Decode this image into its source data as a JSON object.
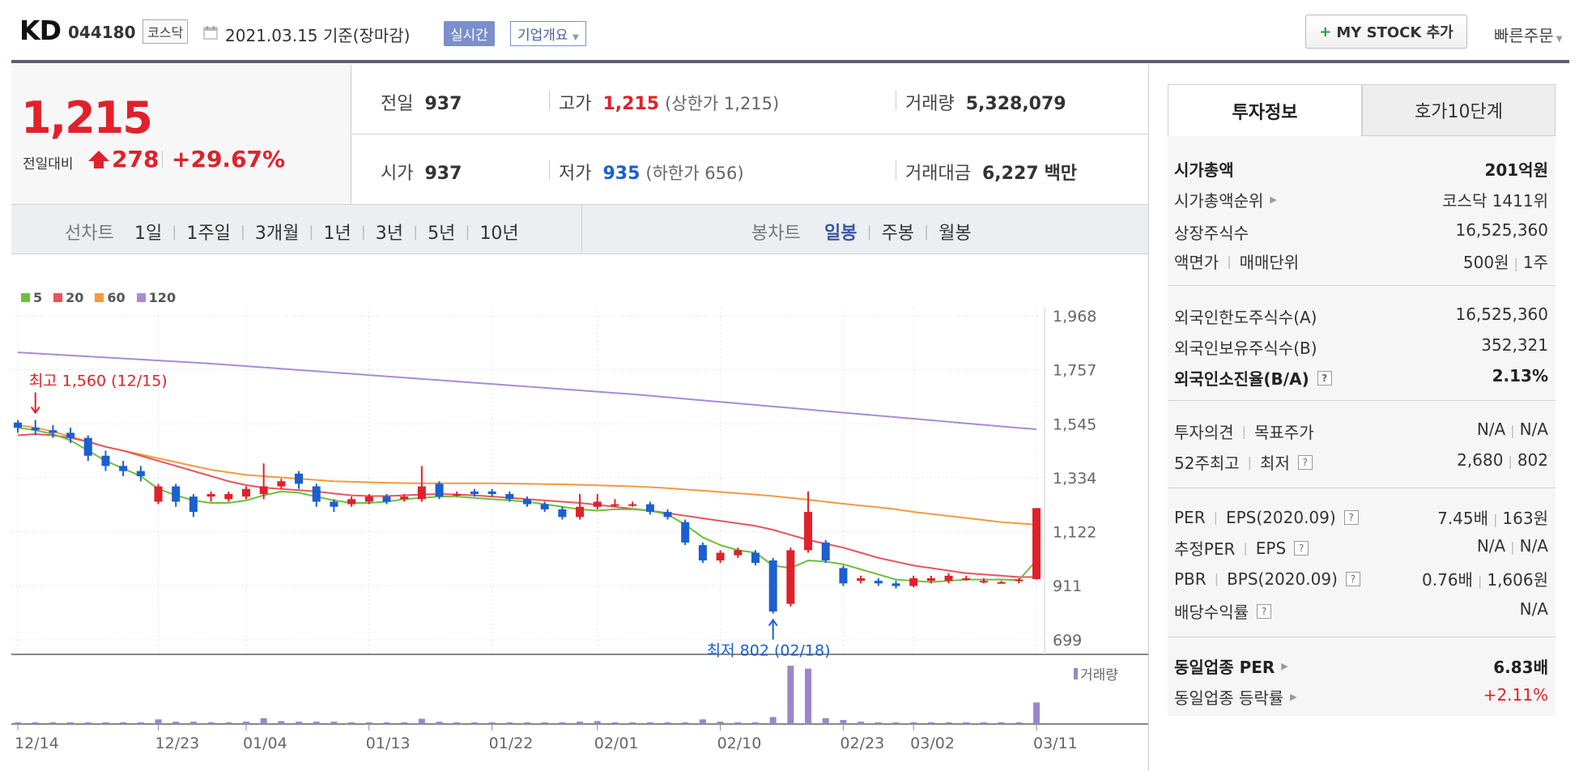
{
  "header": {
    "ticker_name": "KD",
    "ticker_code": "044180",
    "market_badge": "코스닥",
    "calendar_icon": "calendar-icon",
    "date_text": "2021.03.15  기준(장마감)",
    "realtime_btn": "실시간",
    "company_btn": "기업개요",
    "mystock_btn": "MY STOCK 추가",
    "quick_order": "빠른주문"
  },
  "price": {
    "current": "1,215",
    "prev_label": "전일대비",
    "diff": "278",
    "pct": "+29.67%",
    "up_icon": "up-arrow-icon"
  },
  "stats": {
    "prev_lbl": "전일",
    "prev_val": "937",
    "high_lbl": "고가",
    "high_val": "1,215",
    "upper_limit": "(상한가 1,215)",
    "volume_lbl": "거래량",
    "volume_val": "5,328,079",
    "open_lbl": "시가",
    "open_val": "937",
    "low_lbl": "저가",
    "low_val": "935",
    "lower_limit": "(하한가 656)",
    "amount_lbl": "거래대금",
    "amount_val": "6,227",
    "amount_unit": "백만"
  },
  "periods": {
    "line_label": "선차트",
    "line_items": [
      "1일",
      "1주일",
      "3개월",
      "1년",
      "3년",
      "5년",
      "10년"
    ],
    "candle_label": "봉차트",
    "candle_items": [
      "일봉",
      "주봉",
      "월봉"
    ],
    "active_candle": "일봉"
  },
  "tabs": {
    "invest": "투자정보",
    "hoga": "호가10단계"
  },
  "info": {
    "mcap_lbl": "시가총액",
    "mcap_val": "201억원",
    "mcap_rank_lbl": "시가총액순위",
    "mcap_rank_val": "코스닥 1411위",
    "shares_lbl": "상장주식수",
    "shares_val": "16,525,360",
    "face_lbl": "액면가",
    "unit_lbl": "매매단위",
    "face_val": "500원",
    "unit_val": "1주",
    "foreign_limit_lbl": "외국인한도주식수(A)",
    "foreign_limit_val": "16,525,360",
    "foreign_hold_lbl": "외국인보유주식수(B)",
    "foreign_hold_val": "352,321",
    "foreign_ratio_lbl": "외국인소진율(B/A)",
    "foreign_ratio_val": "2.13%",
    "opinion_lbl": "투자의견",
    "target_lbl": "목표주가",
    "opinion_val": "N/A",
    "target_val": "N/A",
    "w52_lbl": "52주최고",
    "w52_low_lbl": "최저",
    "w52_high_val": "2,680",
    "w52_low_val": "802",
    "per_lbl": "PER",
    "eps_lbl": "EPS(2020.09)",
    "per_val": "7.45배",
    "eps_val": "163원",
    "eper_lbl": "추정PER",
    "eeps_lbl": "EPS",
    "eper_val": "N/A",
    "eeps_val": "N/A",
    "pbr_lbl": "PBR",
    "bps_lbl": "BPS(2020.09)",
    "pbr_val": "0.76배",
    "bps_val": "1,606원",
    "div_lbl": "배당수익률",
    "div_val": "N/A",
    "ind_per_lbl": "동일업종 PER",
    "ind_per_val": "6.83배",
    "ind_rate_lbl": "동일업종 등락률",
    "ind_rate_val": "+2.11%"
  },
  "colors": {
    "up": "#e0212b",
    "down": "#1a60d0",
    "ma5": "#6cbf3c",
    "ma20": "#e8545c",
    "ma60": "#f39a3e",
    "ma120": "#a78bd8",
    "volume": "#9b86c8"
  },
  "chart_data": {
    "type": "candlestick",
    "legend": [
      "5",
      "20",
      "60",
      "120"
    ],
    "y_ticks": [
      1968,
      1757,
      1545,
      1334,
      1122,
      911,
      699
    ],
    "ylim": [
      699,
      1968
    ],
    "x_ticks": [
      "12/14",
      "12/23",
      "01/04",
      "01/13",
      "01/22",
      "02/01",
      "02/10",
      "02/23",
      "03/02",
      "03/11"
    ],
    "x_tick_index": [
      0,
      8,
      13,
      20,
      27,
      33,
      40,
      47,
      51,
      58
    ],
    "high_annotation": "최고 1,560 (12/15)",
    "high_index": 1,
    "high_value": 1560,
    "low_annotation": "최저 802 (02/18)",
    "low_index": 43,
    "low_value": 802,
    "volume_label": "거래량",
    "candles": [
      [
        1550,
        1530,
        1560,
        1510
      ],
      [
        1530,
        1520,
        1560,
        1500
      ],
      [
        1520,
        1510,
        1540,
        1490
      ],
      [
        1510,
        1490,
        1530,
        1470
      ],
      [
        1490,
        1420,
        1500,
        1400
      ],
      [
        1420,
        1380,
        1440,
        1360
      ],
      [
        1380,
        1360,
        1400,
        1340
      ],
      [
        1360,
        1340,
        1380,
        1320
      ],
      [
        1240,
        1300,
        1310,
        1230
      ],
      [
        1300,
        1240,
        1310,
        1220
      ],
      [
        1260,
        1200,
        1270,
        1180
      ],
      [
        1260,
        1270,
        1280,
        1240
      ],
      [
        1250,
        1270,
        1280,
        1240
      ],
      [
        1260,
        1290,
        1300,
        1250
      ],
      [
        1270,
        1300,
        1390,
        1250
      ],
      [
        1300,
        1320,
        1330,
        1290
      ],
      [
        1350,
        1310,
        1360,
        1290
      ],
      [
        1300,
        1240,
        1310,
        1220
      ],
      [
        1240,
        1220,
        1250,
        1200
      ],
      [
        1230,
        1250,
        1260,
        1220
      ],
      [
        1240,
        1260,
        1270,
        1230
      ],
      [
        1260,
        1240,
        1270,
        1230
      ],
      [
        1250,
        1260,
        1270,
        1240
      ],
      [
        1250,
        1300,
        1380,
        1240
      ],
      [
        1310,
        1260,
        1320,
        1250
      ],
      [
        1270,
        1270,
        1280,
        1260
      ],
      [
        1280,
        1270,
        1290,
        1260
      ],
      [
        1280,
        1270,
        1290,
        1260
      ],
      [
        1270,
        1250,
        1280,
        1240
      ],
      [
        1250,
        1230,
        1260,
        1220
      ],
      [
        1230,
        1210,
        1240,
        1200
      ],
      [
        1210,
        1180,
        1220,
        1170
      ],
      [
        1180,
        1220,
        1270,
        1170
      ],
      [
        1220,
        1240,
        1270,
        1210
      ],
      [
        1230,
        1230,
        1250,
        1220
      ],
      [
        1230,
        1230,
        1240,
        1220
      ],
      [
        1230,
        1200,
        1240,
        1190
      ],
      [
        1200,
        1180,
        1210,
        1170
      ],
      [
        1160,
        1080,
        1170,
        1070
      ],
      [
        1070,
        1010,
        1080,
        1000
      ],
      [
        1010,
        1040,
        1050,
        1000
      ],
      [
        1030,
        1050,
        1060,
        1020
      ],
      [
        1040,
        1000,
        1050,
        990
      ],
      [
        1010,
        810,
        1020,
        802
      ],
      [
        840,
        1050,
        1060,
        830
      ],
      [
        1050,
        1200,
        1280,
        1040
      ],
      [
        1080,
        1010,
        1090,
        1000
      ],
      [
        980,
        920,
        990,
        910
      ],
      [
        930,
        940,
        950,
        920
      ],
      [
        930,
        920,
        940,
        910
      ],
      [
        920,
        910,
        930,
        900
      ],
      [
        910,
        940,
        950,
        905
      ],
      [
        930,
        940,
        950,
        920
      ],
      [
        930,
        950,
        960,
        920
      ],
      [
        940,
        940,
        950,
        930
      ],
      [
        930,
        930,
        940,
        920
      ],
      [
        925,
        925,
        930,
        920
      ],
      [
        930,
        935,
        940,
        920
      ],
      [
        937,
        1215,
        1215,
        935
      ]
    ],
    "volumes": [
      3,
      3,
      3,
      3,
      3,
      3,
      3,
      3,
      8,
      4,
      4,
      3,
      3,
      4,
      10,
      5,
      4,
      4,
      4,
      3,
      3,
      3,
      3,
      9,
      4,
      3,
      3,
      3,
      3,
      3,
      3,
      3,
      4,
      5,
      3,
      3,
      3,
      3,
      3,
      8,
      4,
      3,
      3,
      12,
      100,
      95,
      10,
      7,
      4,
      3,
      3,
      3,
      3,
      3,
      3,
      3,
      3,
      3,
      37
    ],
    "ma5": [
      1530,
      1520,
      1505,
      1480,
      1440,
      1400,
      1370,
      1340,
      1290,
      1265,
      1245,
      1235,
      1235,
      1245,
      1265,
      1280,
      1275,
      1260,
      1245,
      1235,
      1235,
      1240,
      1250,
      1255,
      1260,
      1260,
      1255,
      1250,
      1245,
      1240,
      1230,
      1220,
      1210,
      1205,
      1210,
      1210,
      1205,
      1190,
      1150,
      1100,
      1070,
      1050,
      1040,
      990,
      980,
      1010,
      1005,
      995,
      975,
      955,
      935,
      930,
      925,
      930,
      935,
      935,
      935,
      933,
      1010
    ],
    "ma20": [
      1500,
      1505,
      1500,
      1490,
      1475,
      1455,
      1440,
      1420,
      1400,
      1380,
      1360,
      1340,
      1320,
      1305,
      1295,
      1290,
      1285,
      1280,
      1272,
      1265,
      1262,
      1262,
      1265,
      1268,
      1270,
      1268,
      1265,
      1260,
      1255,
      1250,
      1245,
      1240,
      1235,
      1228,
      1220,
      1212,
      1205,
      1195,
      1185,
      1175,
      1165,
      1155,
      1145,
      1130,
      1110,
      1090,
      1075,
      1060,
      1040,
      1020,
      1005,
      990,
      980,
      970,
      960,
      955,
      950,
      945,
      945
    ],
    "ma60": [
      1540,
      1530,
      1515,
      1495,
      1475,
      1455,
      1440,
      1425,
      1410,
      1395,
      1380,
      1365,
      1355,
      1345,
      1340,
      1335,
      1330,
      1325,
      1320,
      1318,
      1316,
      1314,
      1313,
      1312,
      1312,
      1312,
      1312,
      1312,
      1311,
      1310,
      1309,
      1308,
      1306,
      1304,
      1302,
      1300,
      1297,
      1293,
      1288,
      1283,
      1278,
      1273,
      1268,
      1262,
      1255,
      1248,
      1240,
      1232,
      1225,
      1218,
      1210,
      1200,
      1192,
      1184,
      1176,
      1168,
      1160,
      1155,
      1150
    ],
    "ma120": [
      1825,
      1821,
      1817,
      1813,
      1809,
      1805,
      1801,
      1797,
      1793,
      1789,
      1785,
      1781,
      1776,
      1771,
      1766,
      1761,
      1756,
      1751,
      1746,
      1741,
      1736,
      1731,
      1726,
      1721,
      1716,
      1711,
      1706,
      1701,
      1696,
      1691,
      1686,
      1681,
      1676,
      1671,
      1666,
      1661,
      1655,
      1649,
      1643,
      1637,
      1631,
      1625,
      1619,
      1613,
      1607,
      1601,
      1595,
      1589,
      1583,
      1577,
      1571,
      1565,
      1559,
      1553,
      1547,
      1541,
      1535,
      1529,
      1524
    ]
  }
}
